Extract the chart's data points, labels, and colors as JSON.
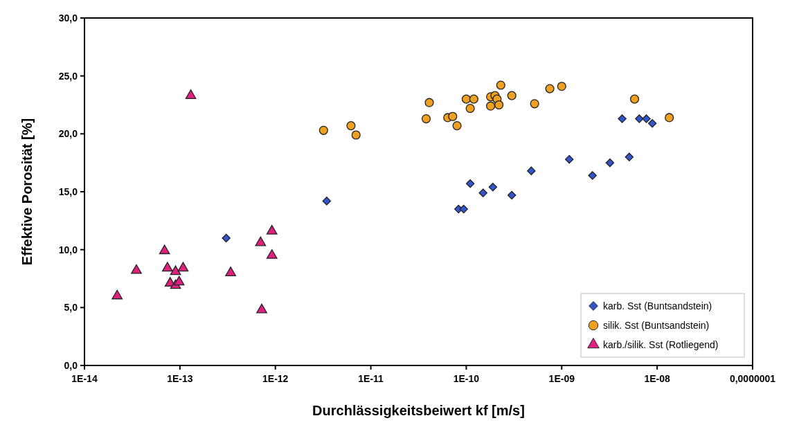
{
  "chart_data": {
    "type": "scatter",
    "xlabel": "Durchlässigkeitsbeiwert kf [m/s]",
    "ylabel": "Effektive Porosität [%]",
    "log": "x",
    "grid": false,
    "legend": "bottom right",
    "xlim": [
      1e-14,
      1e-07
    ],
    "xticks": [
      {
        "value": 1e-14,
        "label": "1E-14"
      },
      {
        "value": 1e-13,
        "label": "1E-13"
      },
      {
        "value": 1e-12,
        "label": "1E-12"
      },
      {
        "value": 1e-11,
        "label": "1E-11"
      },
      {
        "value": 1e-10,
        "label": "1E-10"
      },
      {
        "value": 1e-09,
        "label": "1E-09"
      },
      {
        "value": 1e-08,
        "label": "1E-08"
      },
      {
        "value": 1e-07,
        "label": "0,0000001"
      }
    ],
    "ylim": [
      0,
      30
    ],
    "yticks": [
      {
        "value": 0,
        "label": "0,0"
      },
      {
        "value": 5,
        "label": "5,0"
      },
      {
        "value": 10,
        "label": "10,0"
      },
      {
        "value": 15,
        "label": "15,0"
      },
      {
        "value": 20,
        "label": "20,0"
      },
      {
        "value": 25,
        "label": "25,0"
      },
      {
        "value": 30,
        "label": "30,0"
      }
    ],
    "series": [
      {
        "name": "karb. Sst (Buntsandstein)",
        "color": "#3355cc",
        "marker": "diamond",
        "x": [
          3.05e-13,
          3.45e-12,
          1.1e-10,
          1.5e-10,
          1.9e-10,
          3e-10,
          8.3e-11,
          9.4e-11,
          4.8e-10,
          1.2e-09,
          2.1e-09,
          3.2e-09,
          5.1e-09,
          4.3e-09,
          6.5e-09,
          7.7e-09,
          8.9e-09
        ],
        "values": [
          11.0,
          14.2,
          15.7,
          14.9,
          15.4,
          14.7,
          13.5,
          13.5,
          16.8,
          17.8,
          16.4,
          17.5,
          18.0,
          21.3,
          21.3,
          21.3,
          20.9
        ]
      },
      {
        "name": "silik. Sst (Buntsandstein)",
        "color": "#f0a020",
        "marker": "circle",
        "x": [
          3.2e-12,
          6.2e-12,
          7e-12,
          3.8e-11,
          4.1e-11,
          6.4e-11,
          7.2e-11,
          8e-11,
          1e-10,
          1.2e-10,
          1.1e-10,
          1.8e-10,
          2e-10,
          2.1e-10,
          1.8e-10,
          2.2e-10,
          2.3e-10,
          3e-10,
          5.2e-10,
          7.5e-10,
          1e-09,
          5.8e-09,
          1.34e-08
        ],
        "values": [
          20.3,
          20.7,
          19.9,
          21.3,
          22.7,
          21.4,
          21.5,
          20.7,
          23.0,
          23.0,
          22.2,
          23.2,
          23.3,
          23.0,
          22.4,
          22.5,
          24.2,
          23.3,
          22.6,
          23.9,
          24.1,
          23.0,
          21.4
        ]
      },
      {
        "name": "karb./silik. Sst (Rotliegend)",
        "color": "#e0207f",
        "marker": "triangle",
        "x": [
          2.2e-14,
          3.5e-14,
          6.9e-14,
          7.4e-14,
          9e-14,
          1.08e-13,
          7.9e-14,
          9e-14,
          9.8e-14,
          3.4e-13,
          7e-13,
          9.2e-13,
          9.2e-13,
          7.2e-13,
          1.3e-13
        ],
        "values": [
          6.0,
          8.2,
          9.9,
          8.4,
          8.1,
          8.4,
          7.1,
          6.9,
          7.2,
          8.0,
          10.6,
          11.6,
          9.5,
          4.8,
          23.3
        ]
      }
    ]
  }
}
